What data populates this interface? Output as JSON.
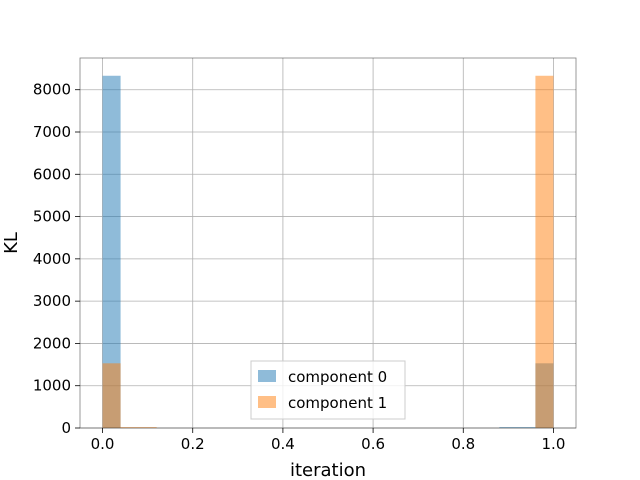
{
  "chart_data": {
    "type": "histogram",
    "title": "",
    "xlabel": "iteration",
    "ylabel": "KL",
    "xlim": [
      -0.05,
      1.05
    ],
    "ylim": [
      0,
      8750
    ],
    "xticks": [
      0.0,
      0.2,
      0.4,
      0.6,
      0.8,
      1.0
    ],
    "xtick_labels": [
      "0.0",
      "0.2",
      "0.4",
      "0.6",
      "0.8",
      "1.0"
    ],
    "yticks": [
      0,
      1000,
      2000,
      3000,
      4000,
      5000,
      6000,
      7000,
      8000
    ],
    "ytick_labels": [
      "0",
      "1000",
      "2000",
      "3000",
      "4000",
      "5000",
      "6000",
      "7000",
      "8000"
    ],
    "grid": true,
    "legend_position": "lower center",
    "series": [
      {
        "name": "component 0",
        "color": "#1f77b4",
        "opacity": 0.5,
        "bins": [
          {
            "x0": 0.0,
            "x1": 0.04,
            "value": 8330
          },
          {
            "x0": 0.88,
            "x1": 0.96,
            "value": 20
          },
          {
            "x0": 0.96,
            "x1": 1.0,
            "value": 1530
          }
        ]
      },
      {
        "name": "component 1",
        "color": "#ff7f0e",
        "opacity": 0.5,
        "bins": [
          {
            "x0": 0.0,
            "x1": 0.04,
            "value": 1530
          },
          {
            "x0": 0.04,
            "x1": 0.12,
            "value": 20
          },
          {
            "x0": 0.96,
            "x1": 1.0,
            "value": 8330
          }
        ]
      }
    ]
  }
}
